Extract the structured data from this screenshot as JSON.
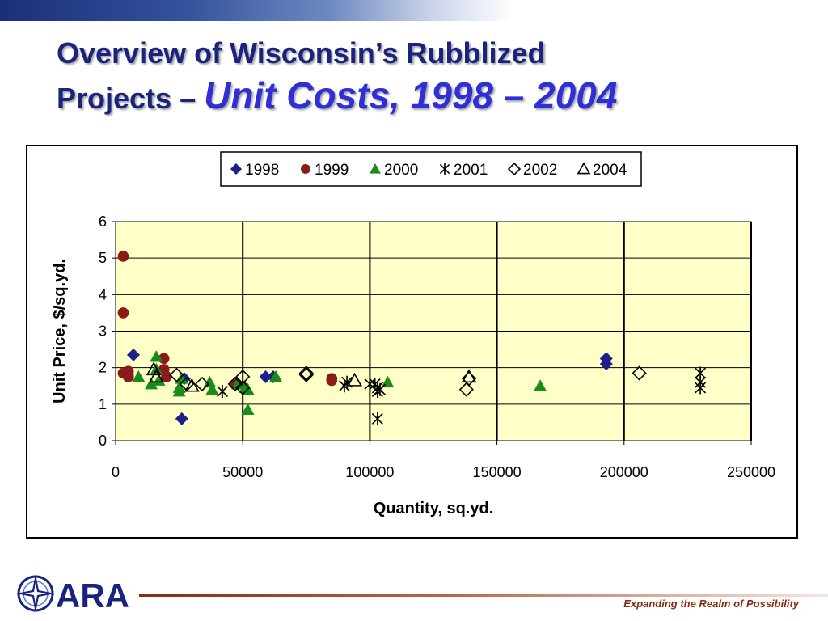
{
  "slide": {
    "title_line1": "Overview of Wisconsin’s Rubblized",
    "title_line2_plain": "Projects – ",
    "title_line2_accent": "Unit Costs, 1998 – 2004",
    "tagline": "Expanding the Realm of Possibility",
    "logo_text": "ARA",
    "logo_icon": "compass-star-icon",
    "colors": {
      "title": "#1a237e",
      "accent": "#2f2fd8",
      "tagline": "#8b2a10",
      "logo": "#1a237e"
    }
  },
  "chart_data": {
    "type": "scatter",
    "xlabel": "Quantity, sq.yd.",
    "ylabel": "Unit Price, $/sq.yd.",
    "xlim": [
      0,
      250000
    ],
    "ylim": [
      0,
      6
    ],
    "xticks": [
      "0",
      "50000",
      "100000",
      "150000",
      "200000",
      "250000"
    ],
    "yticks": [
      "0",
      "1",
      "2",
      "3",
      "4",
      "5",
      "6"
    ],
    "grid": "vertical and horizontal major gridlines",
    "plot_background": "#ffffc8",
    "legend_position": "top-center",
    "series": [
      {
        "name": "1998",
        "marker": "filled-diamond",
        "color": "#1f1f8c",
        "points": [
          [
            7000,
            2.35
          ],
          [
            26000,
            0.6
          ],
          [
            27000,
            1.7
          ],
          [
            59000,
            1.75
          ],
          [
            62000,
            1.75
          ],
          [
            193000,
            2.25
          ],
          [
            193000,
            2.1
          ]
        ]
      },
      {
        "name": "1999",
        "marker": "filled-circle",
        "color": "#8b1a1a",
        "points": [
          [
            3000,
            5.05
          ],
          [
            3000,
            3.5
          ],
          [
            3000,
            1.85
          ],
          [
            5000,
            1.8
          ],
          [
            5000,
            1.9
          ],
          [
            5000,
            1.75
          ],
          [
            19000,
            2.25
          ],
          [
            19000,
            1.95
          ],
          [
            20000,
            1.75
          ],
          [
            47000,
            1.55
          ],
          [
            85000,
            1.7
          ],
          [
            85000,
            1.65
          ]
        ]
      },
      {
        "name": "2000",
        "marker": "filled-triangle",
        "color": "#1a8c1a",
        "points": [
          [
            9000,
            1.75
          ],
          [
            14000,
            1.55
          ],
          [
            16000,
            1.95
          ],
          [
            16000,
            2.3
          ],
          [
            17000,
            1.65
          ],
          [
            25000,
            1.35
          ],
          [
            25000,
            1.45
          ],
          [
            26000,
            1.7
          ],
          [
            37000,
            1.6
          ],
          [
            38000,
            1.4
          ],
          [
            48000,
            1.55
          ],
          [
            51000,
            1.45
          ],
          [
            52000,
            0.85
          ],
          [
            52000,
            1.4
          ],
          [
            63000,
            1.75
          ],
          [
            107000,
            1.6
          ],
          [
            167000,
            1.5
          ]
        ]
      },
      {
        "name": "2001",
        "marker": "asterisk",
        "color": "#000000",
        "points": [
          [
            42000,
            1.35
          ],
          [
            90000,
            1.5
          ],
          [
            91000,
            1.6
          ],
          [
            100000,
            1.55
          ],
          [
            102000,
            1.55
          ],
          [
            103000,
            1.45
          ],
          [
            103000,
            1.35
          ],
          [
            104000,
            1.4
          ],
          [
            103000,
            0.6
          ],
          [
            230000,
            1.85
          ],
          [
            230000,
            1.6
          ],
          [
            230000,
            1.45
          ]
        ]
      },
      {
        "name": "2002",
        "marker": "open-diamond",
        "color": "#000000",
        "points": [
          [
            24000,
            1.8
          ],
          [
            28000,
            1.55
          ],
          [
            34000,
            1.55
          ],
          [
            47000,
            1.55
          ],
          [
            50000,
            1.75
          ],
          [
            50000,
            1.45
          ],
          [
            75000,
            1.85
          ],
          [
            75000,
            1.8
          ],
          [
            138000,
            1.4
          ],
          [
            139000,
            1.7
          ],
          [
            206000,
            1.85
          ]
        ]
      },
      {
        "name": "2004",
        "marker": "open-triangle",
        "color": "#000000",
        "points": [
          [
            15000,
            1.95
          ],
          [
            16000,
            1.75
          ],
          [
            30000,
            1.5
          ],
          [
            94000,
            1.65
          ],
          [
            139000,
            1.75
          ]
        ]
      }
    ]
  }
}
